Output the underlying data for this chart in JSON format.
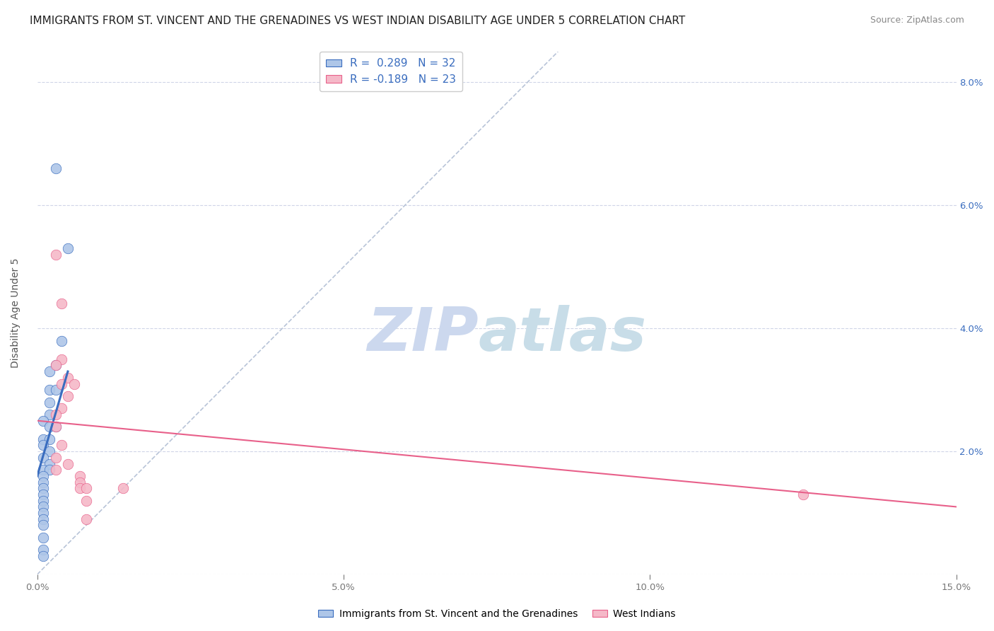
{
  "title": "IMMIGRANTS FROM ST. VINCENT AND THE GRENADINES VS WEST INDIAN DISABILITY AGE UNDER 5 CORRELATION CHART",
  "source": "Source: ZipAtlas.com",
  "ylabel": "Disability Age Under 5",
  "xlim": [
    0.0,
    0.15
  ],
  "ylim": [
    0.0,
    0.085
  ],
  "xticks": [
    0.0,
    0.05,
    0.1,
    0.15
  ],
  "xticklabels": [
    "0.0%",
    "5.0%",
    "10.0%",
    "15.0%"
  ],
  "yticks": [
    0.0,
    0.02,
    0.04,
    0.06,
    0.08
  ],
  "yticklabels_right": [
    "",
    "2.0%",
    "4.0%",
    "6.0%",
    "8.0%"
  ],
  "r_blue": 0.289,
  "n_blue": 32,
  "r_pink": -0.189,
  "n_pink": 23,
  "blue_color": "#aec6e8",
  "pink_color": "#f5b8c8",
  "blue_line_color": "#3a6dbf",
  "pink_line_color": "#e8608a",
  "diagonal_color": "#b8c4d8",
  "watermark_zip_color": "#ccd8ee",
  "watermark_atlas_color": "#c8dde8",
  "blue_scatter": [
    [
      0.003,
      0.066
    ],
    [
      0.005,
      0.053
    ],
    [
      0.004,
      0.038
    ],
    [
      0.003,
      0.034
    ],
    [
      0.002,
      0.033
    ],
    [
      0.002,
      0.03
    ],
    [
      0.003,
      0.03
    ],
    [
      0.002,
      0.028
    ],
    [
      0.002,
      0.026
    ],
    [
      0.001,
      0.025
    ],
    [
      0.002,
      0.024
    ],
    [
      0.003,
      0.024
    ],
    [
      0.001,
      0.022
    ],
    [
      0.002,
      0.022
    ],
    [
      0.001,
      0.021
    ],
    [
      0.002,
      0.02
    ],
    [
      0.001,
      0.019
    ],
    [
      0.002,
      0.018
    ],
    [
      0.001,
      0.017
    ],
    [
      0.002,
      0.017
    ],
    [
      0.001,
      0.016
    ],
    [
      0.001,
      0.015
    ],
    [
      0.001,
      0.014
    ],
    [
      0.001,
      0.013
    ],
    [
      0.001,
      0.012
    ],
    [
      0.001,
      0.011
    ],
    [
      0.001,
      0.01
    ],
    [
      0.001,
      0.009
    ],
    [
      0.001,
      0.008
    ],
    [
      0.001,
      0.006
    ],
    [
      0.001,
      0.004
    ],
    [
      0.001,
      0.003
    ]
  ],
  "pink_scatter": [
    [
      0.003,
      0.052
    ],
    [
      0.004,
      0.044
    ],
    [
      0.004,
      0.035
    ],
    [
      0.003,
      0.034
    ],
    [
      0.005,
      0.032
    ],
    [
      0.004,
      0.031
    ],
    [
      0.006,
      0.031
    ],
    [
      0.005,
      0.029
    ],
    [
      0.004,
      0.027
    ],
    [
      0.003,
      0.026
    ],
    [
      0.003,
      0.024
    ],
    [
      0.004,
      0.021
    ],
    [
      0.003,
      0.019
    ],
    [
      0.005,
      0.018
    ],
    [
      0.003,
      0.017
    ],
    [
      0.007,
      0.016
    ],
    [
      0.007,
      0.015
    ],
    [
      0.007,
      0.014
    ],
    [
      0.008,
      0.014
    ],
    [
      0.008,
      0.012
    ],
    [
      0.014,
      0.014
    ],
    [
      0.008,
      0.009
    ],
    [
      0.125,
      0.013
    ]
  ],
  "blue_line": [
    [
      0.0,
      0.016
    ],
    [
      0.005,
      0.033
    ]
  ],
  "pink_line": [
    [
      0.0,
      0.025
    ],
    [
      0.15,
      0.011
    ]
  ],
  "diag_line": [
    [
      0.0,
      0.0
    ],
    [
      0.085,
      0.085
    ]
  ],
  "background_color": "#ffffff",
  "grid_color": "#d0d5e8",
  "title_fontsize": 11,
  "axis_fontsize": 10,
  "tick_fontsize": 9.5,
  "legend_fontsize": 11,
  "source_fontsize": 9
}
